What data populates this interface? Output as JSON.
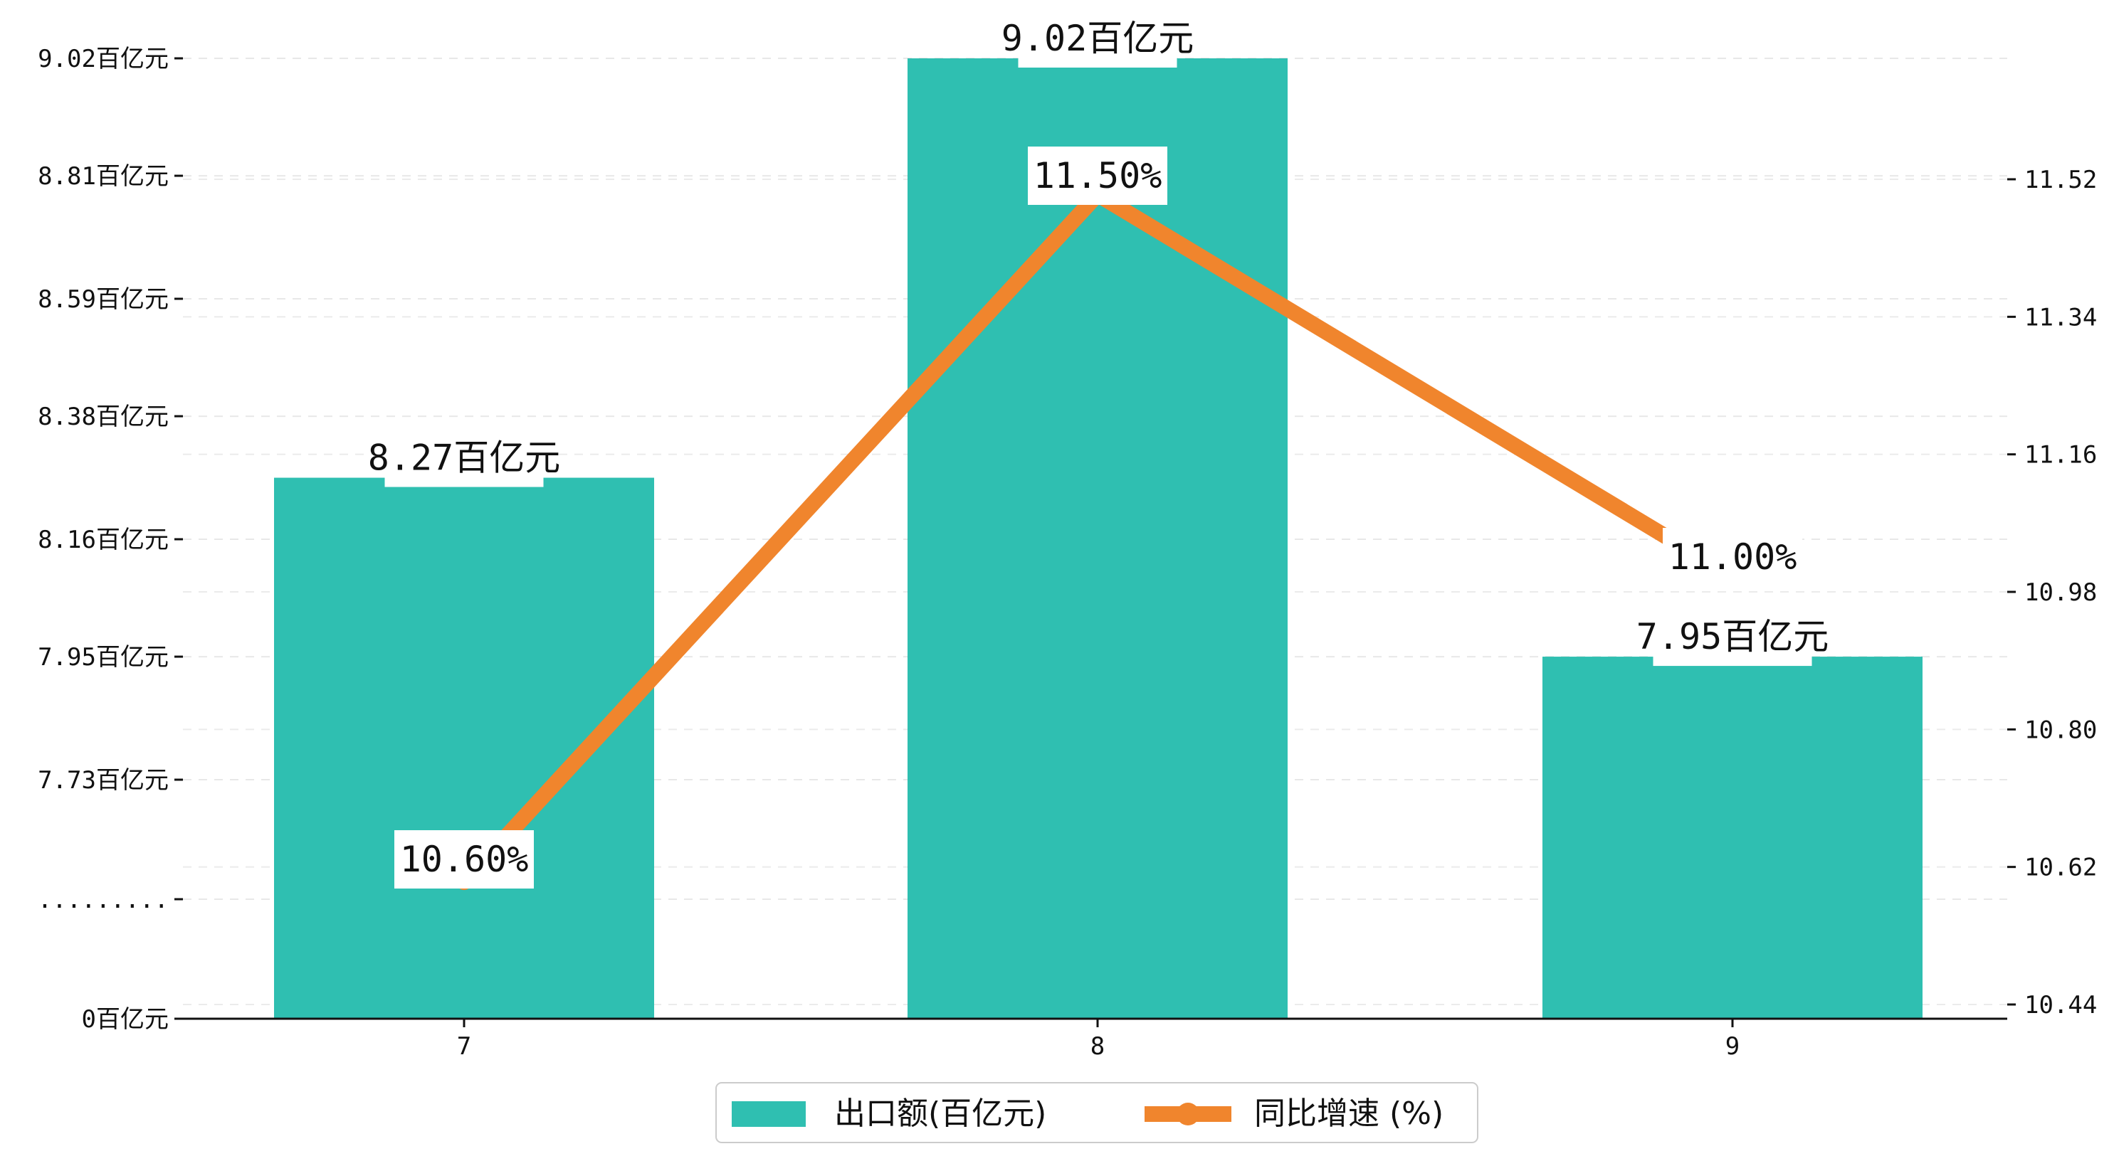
{
  "colors": {
    "bar": "#2fbfb1",
    "line": "#f0852d",
    "axis": "#111111",
    "grid": "#d8d8d8",
    "label_bg": "#ffffff"
  },
  "chart_data": {
    "type": "bar",
    "categories": [
      "7",
      "8",
      "9"
    ],
    "series": [
      {
        "name": "出口额(百亿元)",
        "type": "bar",
        "axis": "left",
        "values": [
          8.27,
          9.02,
          7.95
        ],
        "labels": [
          "8.27百亿元",
          "9.02百亿元",
          "7.95百亿元"
        ]
      },
      {
        "name": "同比增速 (%)",
        "type": "line",
        "axis": "right",
        "values": [
          10.6,
          11.5,
          11.0
        ],
        "labels": [
          "10.60%",
          "11.50%",
          "11.00%"
        ]
      }
    ],
    "left_axis": {
      "broken": true,
      "ticks": [
        {
          "value": 0,
          "label": "0百亿元"
        },
        {
          "value": null,
          "label": "........."
        },
        {
          "value": 7.73,
          "label": "7.73百亿元"
        },
        {
          "value": 7.95,
          "label": "7.95百亿元"
        },
        {
          "value": 8.16,
          "label": "8.16百亿元"
        },
        {
          "value": 8.38,
          "label": "8.38百亿元"
        },
        {
          "value": 8.59,
          "label": "8.59百亿元"
        },
        {
          "value": 8.81,
          "label": "8.81百亿元"
        },
        {
          "value": 9.02,
          "label": "9.02百亿元"
        }
      ]
    },
    "right_axis": {
      "ylim": [
        10.44,
        11.7
      ],
      "ticks": [
        "10.44",
        "10.62",
        "10.80",
        "10.98",
        "11.16",
        "11.34",
        "11.52"
      ]
    },
    "xlabel": "",
    "ylabel": "",
    "grid": "horizontal-dashed",
    "legend_position": "bottom-center"
  }
}
